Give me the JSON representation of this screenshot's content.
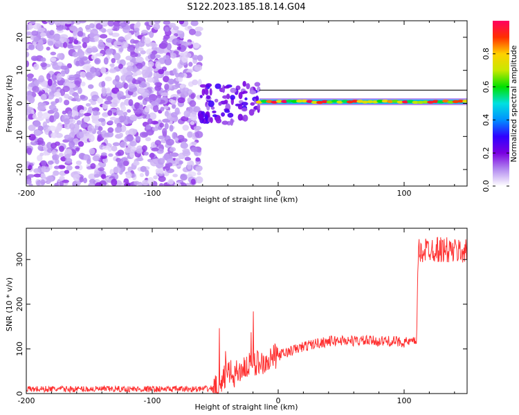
{
  "title": "S122.2023.185.18.14.G04",
  "chart_data": [
    {
      "type": "heatmap",
      "xlabel": "Height of straight line (km)",
      "ylabel": "Frequency (Hz)",
      "xlim": [
        -200,
        150
      ],
      "ylim": [
        -25,
        25
      ],
      "x_ticks": [
        -200,
        -100,
        0,
        100
      ],
      "y_ticks": [
        -20,
        -10,
        0,
        10,
        20
      ],
      "colorbar": {
        "label": "Normalized spectral amplitude",
        "range": [
          0,
          1
        ],
        "ticks": [
          "0.0",
          "0.2",
          "0.4",
          "0.6",
          "0.8"
        ],
        "colormap": [
          "#ffffff",
          "#b48cf0",
          "#7a00e0",
          "#3000ff",
          "#0090ff",
          "#00e0e0",
          "#00e000",
          "#c8e800",
          "#ffd000",
          "#ff3000",
          "#ff0060"
        ]
      },
      "noise_region_x": [
        -200,
        -62
      ],
      "transition_region_x": [
        -62,
        -15
      ],
      "signal_line_frequency_hz": 0.5,
      "signal_region_x": [
        -15,
        150
      ]
    },
    {
      "type": "line",
      "xlabel": "Height of straight line (km)",
      "ylabel": "SNR (10 * v/v)",
      "xlim": [
        -200,
        150
      ],
      "ylim": [
        0,
        370
      ],
      "x_ticks": [
        -200,
        -100,
        0,
        100
      ],
      "y_ticks": [
        0,
        100,
        200,
        300
      ],
      "color": "#ff3030",
      "series": [
        {
          "x": [
            -200,
            -180,
            -160,
            -140,
            -120,
            -100,
            -80,
            -60,
            -50,
            -45,
            -42,
            -40,
            -35,
            -30,
            -25,
            -20,
            -15,
            -10,
            -5,
            0,
            10,
            20,
            30,
            40,
            50,
            60,
            70,
            80,
            90,
            100,
            108,
            110,
            111,
            115,
            120,
            130,
            140,
            150
          ],
          "values": [
            10,
            10,
            10,
            10,
            10,
            10,
            10,
            10,
            12,
            20,
            40,
            50,
            40,
            55,
            60,
            65,
            70,
            75,
            80,
            85,
            95,
            105,
            112,
            117,
            119,
            118,
            118,
            117,
            117,
            115,
            115,
            120,
            315,
            320,
            325,
            322,
            318,
            320
          ]
        }
      ]
    }
  ]
}
